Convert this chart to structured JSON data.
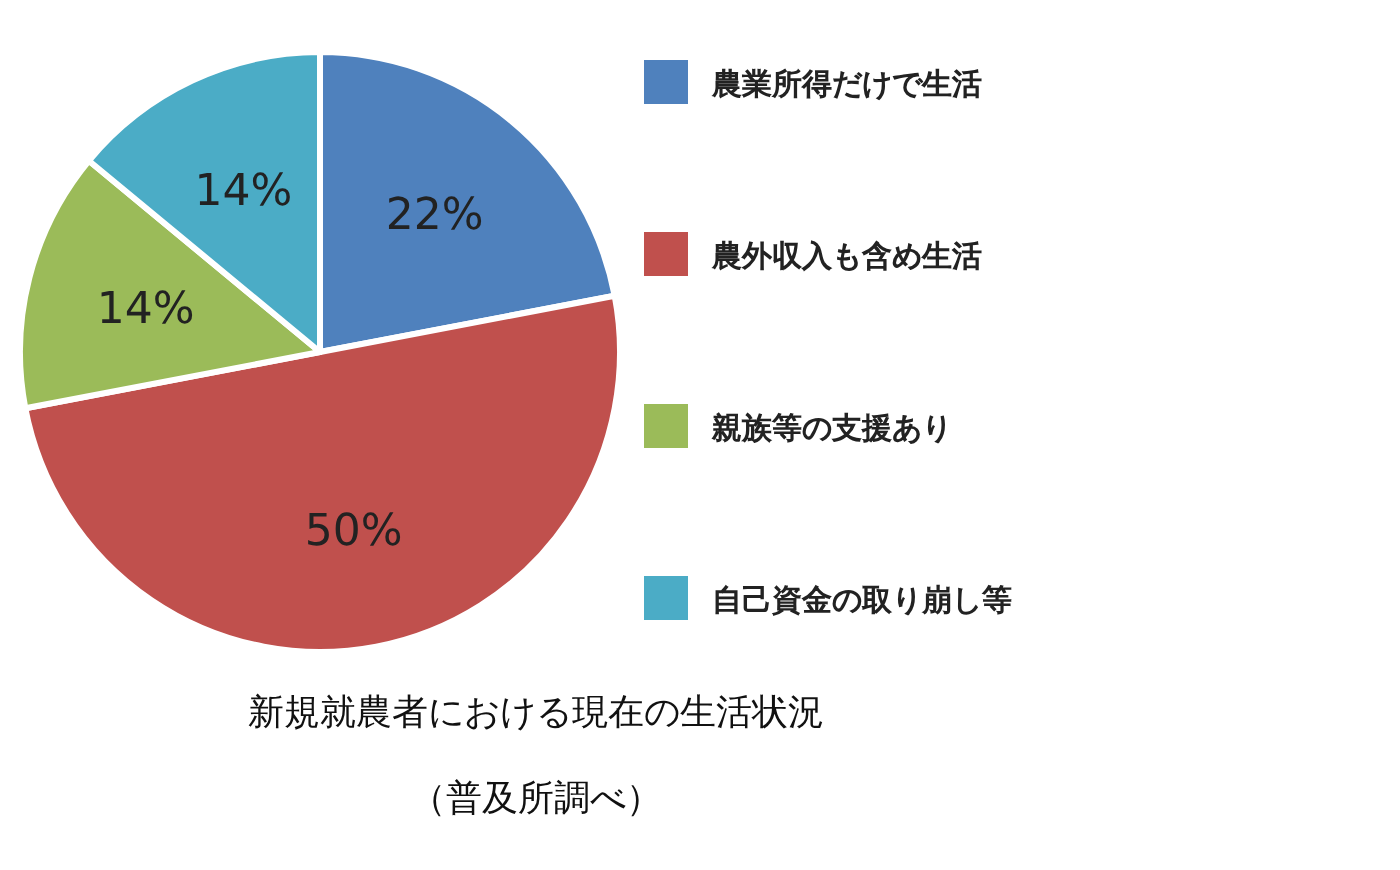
{
  "chart_data": {
    "type": "pie",
    "title": "新規就農者における現在の生活状況",
    "annotations": [
      "（普及所調べ）"
    ],
    "categories": [
      "農業所得だけで生活",
      "農外収入も含め生活",
      "親族等の支援あり",
      "自己資金の取り崩し等"
    ],
    "values": [
      22,
      50,
      14,
      14
    ],
    "colors": [
      "#4f81bd",
      "#c0504d",
      "#9bbb59",
      "#4bacc6"
    ],
    "value_labels": [
      "22%",
      "50%",
      "14%",
      "14%"
    ],
    "legend": "right"
  }
}
